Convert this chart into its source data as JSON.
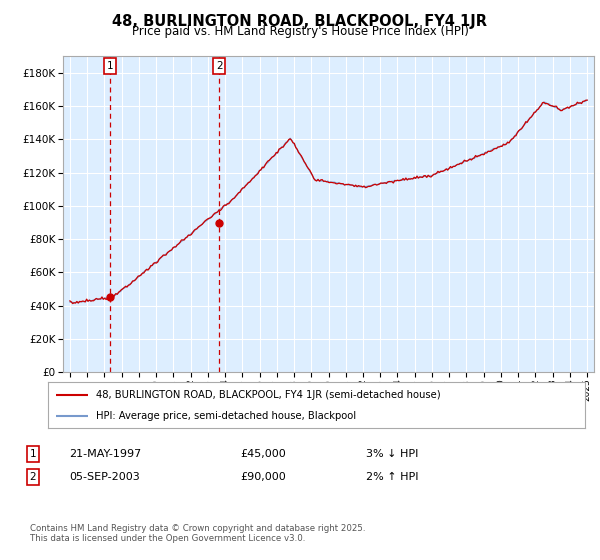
{
  "title": "48, BURLINGTON ROAD, BLACKPOOL, FY4 1JR",
  "subtitle": "Price paid vs. HM Land Registry's House Price Index (HPI)",
  "legend_line1": "48, BURLINGTON ROAD, BLACKPOOL, FY4 1JR (semi-detached house)",
  "legend_line2": "HPI: Average price, semi-detached house, Blackpool",
  "purchase1_date": "21-MAY-1997",
  "purchase1_price": 45000,
  "purchase1_label": "3% ↓ HPI",
  "purchase2_date": "05-SEP-2003",
  "purchase2_price": 90000,
  "purchase2_label": "2% ↑ HPI",
  "footer": "Contains HM Land Registry data © Crown copyright and database right 2025.\nThis data is licensed under the Open Government Licence v3.0.",
  "hpi_color": "#7799cc",
  "price_color": "#cc0000",
  "vline_color": "#cc0000",
  "background_plot": "#ddeeff",
  "grid_color": "#ffffff",
  "ylim": [
    0,
    190000
  ],
  "yticks": [
    0,
    20000,
    40000,
    60000,
    80000,
    100000,
    120000,
    140000,
    160000,
    180000
  ],
  "x_start_year": 1995,
  "x_end_year": 2025
}
